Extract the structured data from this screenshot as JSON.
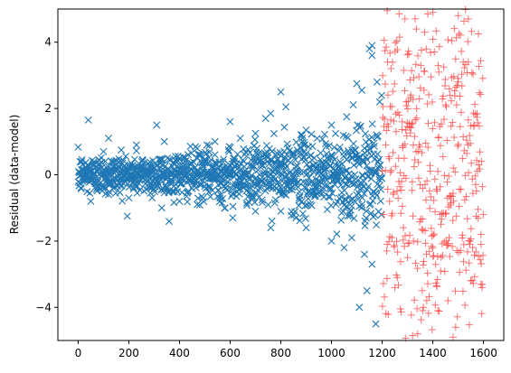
{
  "chart_data": {
    "type": "scatter",
    "title": "",
    "xlabel": "",
    "ylabel": "Residual (data-model)",
    "xlim": [
      -80,
      1680
    ],
    "ylim": [
      -5,
      5
    ],
    "grid": false,
    "legend": "none",
    "xticks": [
      0,
      200,
      400,
      600,
      800,
      1000,
      1200,
      1400,
      1600
    ],
    "yticks": [
      -4,
      -2,
      0,
      2,
      4
    ],
    "xtick_labels": [
      "0",
      "200",
      "400",
      "600",
      "800",
      "1000",
      "1200",
      "1400",
      "1600"
    ],
    "ytick_labels": [
      "−4",
      "−2",
      "0",
      "2",
      "4"
    ],
    "series": [
      {
        "marker": "x",
        "color": "#1f77b4",
        "x_range": [
          0,
          1200
        ],
        "points": [
          [
            40,
            1.65
          ],
          [
            100,
            0.7
          ],
          [
            120,
            1.1
          ],
          [
            170,
            0.75
          ],
          [
            230,
            0.9
          ],
          [
            290,
            0.2
          ],
          [
            310,
            1.5
          ],
          [
            340,
            1.0
          ],
          [
            470,
            0.8
          ],
          [
            540,
            1.0
          ],
          [
            600,
            1.6
          ],
          [
            640,
            1.1
          ],
          [
            700,
            1.25
          ],
          [
            740,
            1.7
          ],
          [
            760,
            1.85
          ],
          [
            800,
            2.5
          ],
          [
            820,
            2.05
          ],
          [
            900,
            1.35
          ],
          [
            1000,
            1.5
          ],
          [
            1060,
            1.75
          ],
          [
            1100,
            2.75
          ],
          [
            1120,
            2.55
          ],
          [
            1150,
            3.8
          ],
          [
            1160,
            3.9
          ],
          [
            1160,
            3.6
          ],
          [
            1180,
            2.8
          ],
          [
            1190,
            2.2
          ],
          [
            1140,
            -3.5
          ],
          [
            1110,
            -4.0
          ],
          [
            1175,
            -4.5
          ],
          [
            1130,
            -2.4
          ],
          [
            1160,
            -2.7
          ],
          [
            1000,
            -2.0
          ],
          [
            900,
            -1.6
          ],
          [
            1080,
            -1.9
          ],
          [
            1050,
            -2.2
          ],
          [
            860,
            -1.3
          ],
          [
            760,
            -1.6
          ],
          [
            800,
            -1.1
          ],
          [
            610,
            -1.3
          ],
          [
            700,
            -1.1
          ],
          [
            580,
            -1.0
          ],
          [
            470,
            -0.9
          ],
          [
            400,
            -0.8
          ],
          [
            330,
            -1.0
          ],
          [
            200,
            -0.7
          ],
          [
            120,
            -0.6
          ],
          [
            50,
            -0.8
          ]
        ]
      },
      {
        "marker": "+",
        "color": "#ff4040",
        "x_range": [
          1200,
          1600
        ],
        "points": [
          [
            1220,
            4.95
          ],
          [
            1290,
            4.7
          ],
          [
            1380,
            4.85
          ],
          [
            1400,
            4.9
          ],
          [
            1500,
            4.8
          ],
          [
            1540,
            4.7
          ],
          [
            1580,
            4.25
          ],
          [
            1520,
            3.4
          ],
          [
            1540,
            3.4
          ],
          [
            1460,
            -3.8
          ],
          [
            1420,
            -4.1
          ],
          [
            1320,
            -4.85
          ],
          [
            1340,
            -4.8
          ],
          [
            1490,
            -4.6
          ],
          [
            1480,
            -4.9
          ],
          [
            1360,
            -4.1
          ],
          [
            1260,
            -3.1
          ],
          [
            1220,
            -2.1
          ],
          [
            1300,
            -2.5
          ],
          [
            1400,
            -2.2
          ],
          [
            1550,
            -3.2
          ],
          [
            1590,
            -1.8
          ],
          [
            1590,
            -2.1
          ]
        ]
      }
    ]
  }
}
